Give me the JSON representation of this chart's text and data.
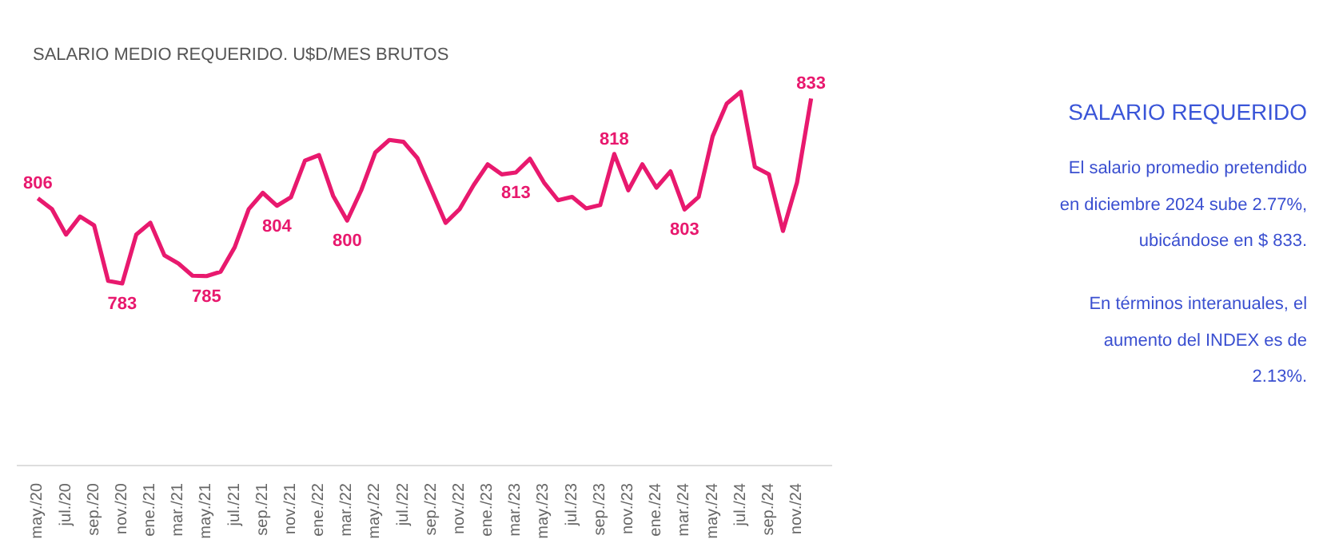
{
  "chart_data": [
    {
      "type": "line",
      "title": "SALARIO MEDIO REQUERIDO. U$D/MES BRUTOS",
      "categories": [
        "may./20",
        null,
        "jul./20",
        null,
        "sep./20",
        null,
        "nov./20",
        null,
        "ene./21",
        null,
        "mar./21",
        null,
        "may./21",
        null,
        "jul./21",
        null,
        "sep./21",
        null,
        "nov./21",
        null,
        "ene./22",
        null,
        "mar./22",
        null,
        "may./22",
        null,
        "jul./22",
        null,
        "sep./22",
        null,
        "nov./22",
        null,
        "ene./23",
        null,
        "mar./23",
        null,
        "may./23",
        null,
        "jul./23",
        null,
        "sep./23",
        null,
        "nov./23",
        null,
        "ene./24",
        null,
        "mar./24",
        null,
        "may./24",
        null,
        "jul./24",
        null,
        "sep./24",
        null,
        "nov./24",
        null
      ],
      "series": [
        {
          "color": "#e8196e",
          "values": [
            806,
            803.1,
            796.2,
            801.1,
            798.7,
            783.7,
            783,
            796.2,
            799.4,
            790.6,
            788.4,
            785.1,
            785,
            786.2,
            792.8,
            803.1,
            807.5,
            804,
            806.3,
            816.2,
            817.7,
            806.7,
            800,
            808.2,
            818.4,
            821.8,
            821.3,
            816.9,
            808.2,
            799.4,
            803.1,
            809.6,
            815.2,
            812.5,
            813,
            816.7,
            810.3,
            805.5,
            806.4,
            803.3,
            804.2,
            818,
            808.2,
            815.2,
            808.9,
            813.3,
            803,
            806.4,
            822.8,
            831.6,
            834.8,
            814.5,
            812.5,
            797.2,
            810.3,
            833
          ],
          "value_labels": [
            "806",
            null,
            null,
            null,
            null,
            null,
            "783",
            null,
            null,
            null,
            null,
            null,
            "785",
            null,
            null,
            null,
            null,
            "804",
            null,
            null,
            null,
            null,
            "800",
            null,
            null,
            null,
            null,
            null,
            null,
            null,
            null,
            null,
            null,
            null,
            "813",
            null,
            null,
            null,
            null,
            null,
            null,
            "818",
            null,
            null,
            null,
            null,
            "803",
            null,
            null,
            null,
            null,
            null,
            null,
            null,
            null,
            "833"
          ]
        }
      ],
      "grid": false,
      "marker": "none",
      "line_style": "solid"
    },
    {
      "type": "other",
      "title": "SALARIO REQUERIDO",
      "annotations": [
        "El salario promedio pretendido\nen diciembre 2024 sube 2.77%,\nubicándose en $ 833.",
        "En términos interanuales, el\naumento del INDEX es de\n2.13%."
      ]
    }
  ]
}
